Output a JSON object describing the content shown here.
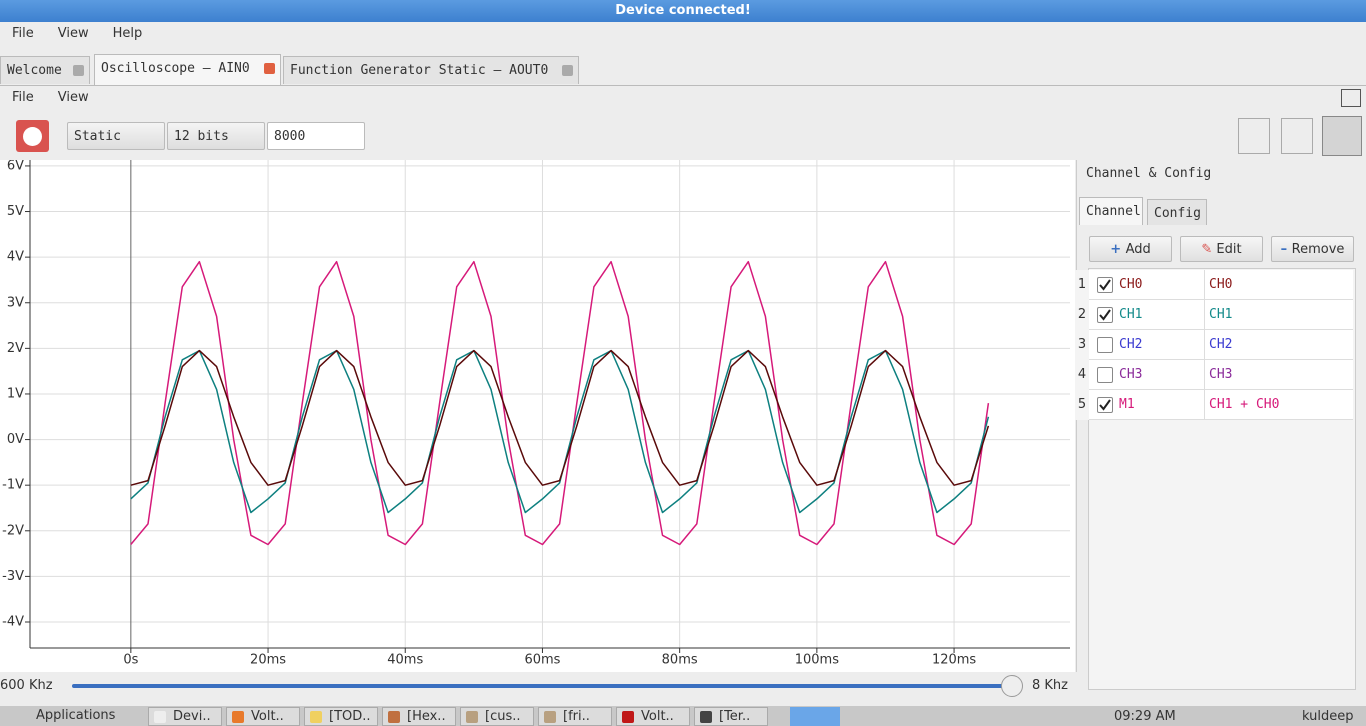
{
  "window": {
    "title": "Device connected!"
  },
  "menu": [
    "File",
    "View",
    "Help"
  ],
  "tabs": [
    "Welcome",
    "Oscilloscope – AIN0",
    "Function Generator Static – AOUT0"
  ],
  "submenu": [
    "File",
    "View"
  ],
  "toolbar": {
    "mode": "Static",
    "bits": "12 bits",
    "samples": "8000"
  },
  "chart_data": {
    "type": "line",
    "x": [
      0,
      2.5,
      5,
      7.5,
      10,
      12.5,
      15,
      17.5,
      20,
      22.5,
      25,
      27.5,
      30,
      32.5,
      35,
      37.5,
      40,
      42.5,
      45,
      47.5,
      50,
      52.5,
      55,
      57.5,
      60,
      62.5,
      65,
      67.5,
      70,
      72.5,
      75,
      77.5,
      80,
      82.5,
      85,
      87.5,
      90,
      92.5,
      95,
      97.5,
      100,
      102.5,
      105,
      107.5,
      110,
      112.5,
      115,
      117.5,
      120,
      122.5,
      125
    ],
    "series": [
      {
        "name": "CH0",
        "color": "#5a0a0a",
        "values": [
          -1.0,
          -0.9,
          0.3,
          1.6,
          1.95,
          1.6,
          0.5,
          -0.5,
          -1.0,
          -0.9,
          0.3,
          1.6,
          1.95,
          1.6,
          0.5,
          -0.5,
          -1.0,
          -0.9,
          0.3,
          1.6,
          1.95,
          1.6,
          0.5,
          -0.5,
          -1.0,
          -0.9,
          0.3,
          1.6,
          1.95,
          1.6,
          0.5,
          -0.5,
          -1.0,
          -0.9,
          0.3,
          1.6,
          1.95,
          1.6,
          0.5,
          -0.5,
          -1.0,
          -0.9,
          0.3,
          1.6,
          1.95,
          1.6,
          0.5,
          -0.5,
          -1.0,
          -0.9,
          0.3
        ]
      },
      {
        "name": "CH1",
        "color": "#0e8080",
        "values": [
          -1.3,
          -0.95,
          0.5,
          1.75,
          1.95,
          1.1,
          -0.5,
          -1.6,
          -1.3,
          -0.95,
          0.5,
          1.75,
          1.95,
          1.1,
          -0.5,
          -1.6,
          -1.3,
          -0.95,
          0.5,
          1.75,
          1.95,
          1.1,
          -0.5,
          -1.6,
          -1.3,
          -0.95,
          0.5,
          1.75,
          1.95,
          1.1,
          -0.5,
          -1.6,
          -1.3,
          -0.95,
          0.5,
          1.75,
          1.95,
          1.1,
          -0.5,
          -1.6,
          -1.3,
          -0.95,
          0.5,
          1.75,
          1.95,
          1.1,
          -0.5,
          -1.6,
          -1.3,
          -0.95,
          0.5
        ]
      },
      {
        "name": "M1",
        "color": "#d61a7a",
        "values": [
          -2.3,
          -1.85,
          0.8,
          3.35,
          3.9,
          2.7,
          0.0,
          -2.1,
          -2.3,
          -1.85,
          0.8,
          3.35,
          3.9,
          2.7,
          0.0,
          -2.1,
          -2.3,
          -1.85,
          0.8,
          3.35,
          3.9,
          2.7,
          0.0,
          -2.1,
          -2.3,
          -1.85,
          0.8,
          3.35,
          3.9,
          2.7,
          0.0,
          -2.1,
          -2.3,
          -1.85,
          0.8,
          3.35,
          3.9,
          2.7,
          0.0,
          -2.1,
          -2.3,
          -1.85,
          0.8,
          3.35,
          3.9,
          2.7,
          0.0,
          -2.1,
          -2.3,
          -1.85,
          0.8
        ]
      }
    ],
    "xlim": [
      -14.7,
      136.9
    ],
    "xticks": [
      {
        "value": 0,
        "label": "0s"
      },
      {
        "value": 20,
        "label": "20ms"
      },
      {
        "value": 40,
        "label": "40ms"
      },
      {
        "value": 60,
        "label": "60ms"
      },
      {
        "value": 80,
        "label": "80ms"
      },
      {
        "value": 100,
        "label": "100ms"
      },
      {
        "value": 120,
        "label": "120ms"
      }
    ],
    "ylim": [
      -4.57,
      6.13
    ],
    "yticks": [
      {
        "value": -4,
        "label": "-4V"
      },
      {
        "value": -3,
        "label": "-3V"
      },
      {
        "value": -2,
        "label": "-2V"
      },
      {
        "value": -1,
        "label": "-1V"
      },
      {
        "value": 0,
        "label": "0V"
      },
      {
        "value": 1,
        "label": "1V"
      },
      {
        "value": 2,
        "label": "2V"
      },
      {
        "value": 3,
        "label": "3V"
      },
      {
        "value": 4,
        "label": "4V"
      },
      {
        "value": 5,
        "label": "5V"
      },
      {
        "value": 6,
        "label": "6V"
      }
    ],
    "grid": true
  },
  "slider": {
    "left": "600 Khz",
    "right": "8 Khz"
  },
  "panel": {
    "title": "Channel & Config",
    "tabs": [
      "Channel",
      "Config"
    ],
    "buttons": [
      "Add",
      "Edit",
      "Remove"
    ],
    "rows": [
      {
        "index": 1,
        "checked": true,
        "name": "CH0",
        "expr": "CH0",
        "color": "#8b1a1a"
      },
      {
        "index": 2,
        "checked": true,
        "name": "CH1",
        "expr": "CH1",
        "color": "#138a8a"
      },
      {
        "index": 3,
        "checked": false,
        "name": "CH2",
        "expr": "CH2",
        "color": "#3a3ad0"
      },
      {
        "index": 4,
        "checked": false,
        "name": "CH3",
        "expr": "CH3",
        "color": "#8a2a9a"
      },
      {
        "index": 5,
        "checked": true,
        "name": "M1",
        "expr": "CH1 + CH0",
        "color": "#d61a7a"
      }
    ]
  },
  "taskbar": {
    "start": "Applications",
    "items": [
      "Devi..",
      "Volt..",
      "[TOD..",
      "[Hex..",
      "[cus..",
      "[fri..",
      "Volt..",
      "[Ter.."
    ],
    "clock": "09:29 AM",
    "user": "kuldeep"
  }
}
